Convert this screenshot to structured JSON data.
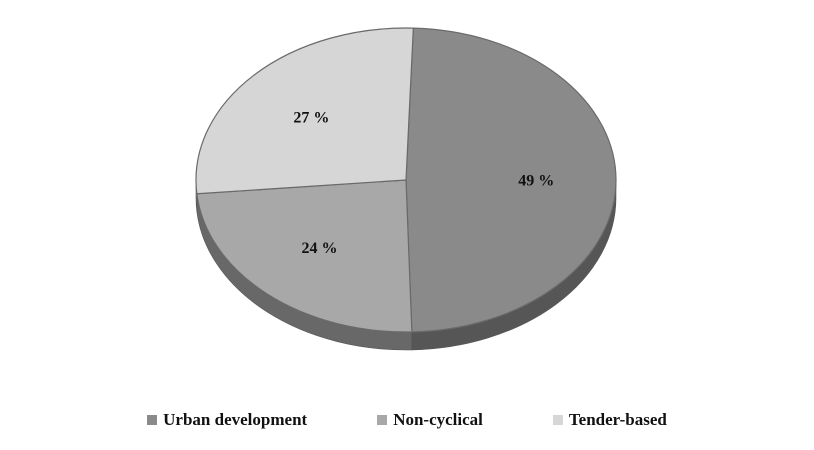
{
  "chart_data": {
    "type": "pie",
    "style": "3d-pie",
    "categories": [
      "Urban development",
      "Non-cyclical",
      "Tender-based"
    ],
    "values": [
      49,
      24,
      27
    ],
    "data_labels": [
      "49 %",
      "24 %",
      "27 %"
    ],
    "colors": [
      "#8a8a8a",
      "#a8a8a8",
      "#d6d6d6"
    ],
    "legend": {
      "position": "bottom",
      "items": [
        {
          "label": "Urban development",
          "color": "#8a8a8a"
        },
        {
          "label": "Non-cyclical",
          "color": "#a8a8a8"
        },
        {
          "label": "Tender-based",
          "color": "#d6d6d6"
        }
      ]
    }
  }
}
